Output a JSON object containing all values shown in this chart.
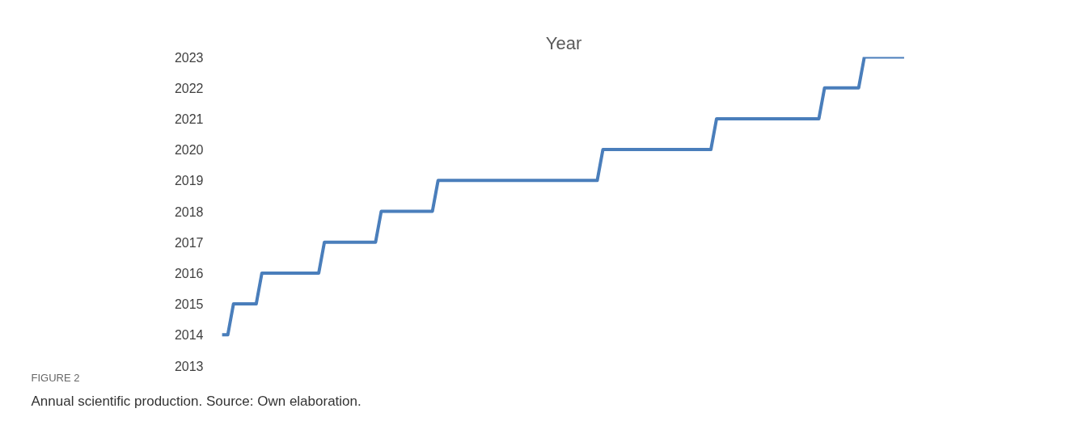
{
  "chart_data": {
    "type": "line",
    "title": "Year",
    "categories": [
      null,
      null,
      null,
      null,
      null,
      null,
      null,
      null,
      null,
      null,
      null,
      null,
      null,
      null,
      null,
      null,
      null,
      null,
      null,
      null,
      null,
      null,
      null,
      null,
      null,
      null,
      null,
      null,
      null,
      null,
      null,
      null,
      null,
      null,
      null,
      null,
      null,
      null,
      null,
      null,
      null,
      null,
      null,
      null,
      null,
      null,
      null,
      null,
      null,
      null,
      null,
      null,
      null,
      null,
      null,
      null,
      null,
      null,
      null,
      null,
      null,
      null,
      null,
      null,
      null,
      null,
      null,
      null,
      null,
      null,
      null,
      null,
      null,
      null,
      null,
      null,
      null,
      null,
      null,
      null,
      null,
      null,
      null,
      null,
      null,
      null,
      null,
      null,
      null,
      null,
      null,
      null,
      null,
      null,
      null,
      null,
      null,
      null,
      null,
      null,
      null,
      null,
      null,
      null,
      null,
      null,
      null,
      null,
      null,
      null,
      null,
      null,
      null,
      null,
      null,
      null,
      null,
      null,
      null,
      null,
      null
    ],
    "series": [
      {
        "color": "#4a7ebb",
        "values": [
          2014,
          2014,
          2015,
          2015,
          2015,
          2015,
          2015,
          2016,
          2016,
          2016,
          2016,
          2016,
          2016,
          2016,
          2016,
          2016,
          2016,
          2016,
          2017,
          2017,
          2017,
          2017,
          2017,
          2017,
          2017,
          2017,
          2017,
          2017,
          2018,
          2018,
          2018,
          2018,
          2018,
          2018,
          2018,
          2018,
          2018,
          2018,
          2019,
          2019,
          2019,
          2019,
          2019,
          2019,
          2019,
          2019,
          2019,
          2019,
          2019,
          2019,
          2019,
          2019,
          2019,
          2019,
          2019,
          2019,
          2019,
          2019,
          2019,
          2019,
          2019,
          2019,
          2019,
          2019,
          2019,
          2019,
          2019,
          2020,
          2020,
          2020,
          2020,
          2020,
          2020,
          2020,
          2020,
          2020,
          2020,
          2020,
          2020,
          2020,
          2020,
          2020,
          2020,
          2020,
          2020,
          2020,
          2020,
          2021,
          2021,
          2021,
          2021,
          2021,
          2021,
          2021,
          2021,
          2021,
          2021,
          2021,
          2021,
          2021,
          2021,
          2021,
          2021,
          2021,
          2021,
          2021,
          2022,
          2022,
          2022,
          2022,
          2022,
          2022,
          2022,
          2023,
          2023,
          2023,
          2023,
          2023,
          2023,
          2023,
          2023
        ]
      }
    ],
    "ylim": [
      2013,
      2023
    ],
    "yticks": [
      2013,
      2014,
      2015,
      2016,
      2017,
      2018,
      2019,
      2020,
      2021,
      2022,
      2023
    ],
    "grid": false,
    "marker": "none",
    "line_style": "solid",
    "tick_labels": "y",
    "annotations": [
      "FIGURE 2",
      "Annual scientific production. Source: Own elaboration."
    ]
  }
}
